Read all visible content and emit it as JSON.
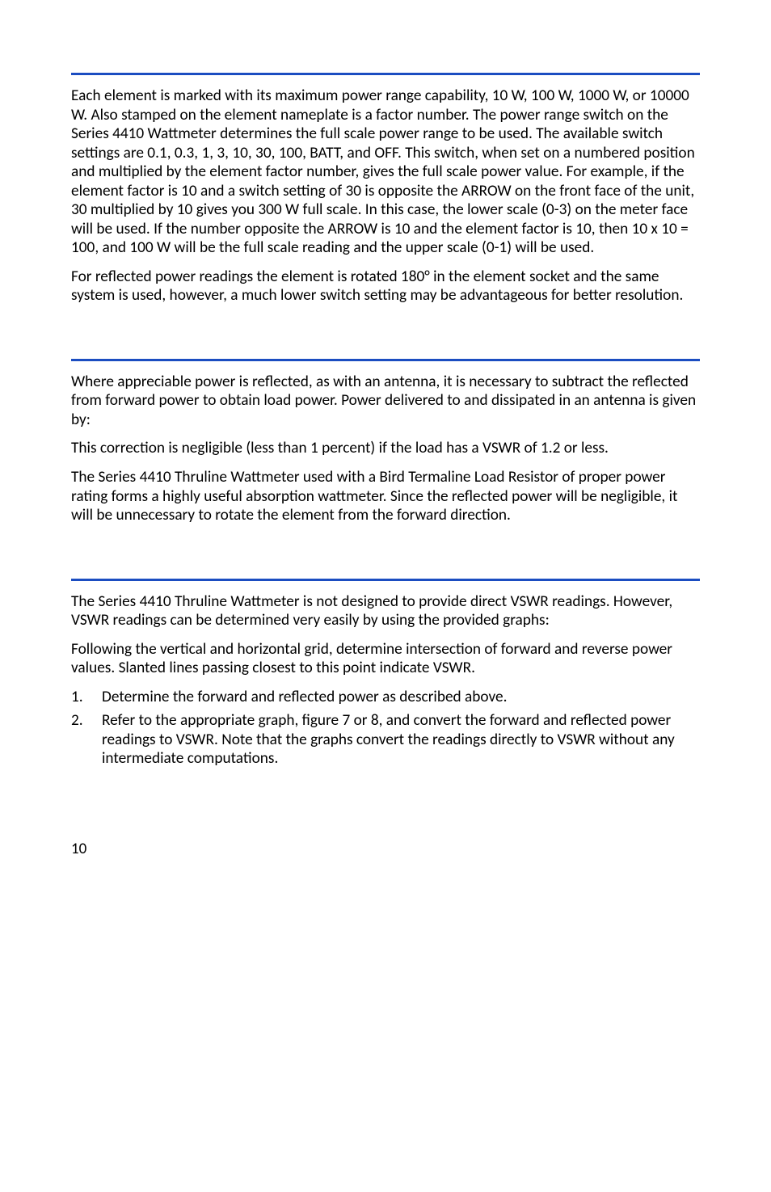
{
  "rule_color": "#1b4dc1",
  "section1": {
    "p1": "Each element is marked with its maximum power range capability, 10 W, 100 W, 1000 W, or 10000 W. Also stamped on the element nameplate is a factor number. The power range switch on the Series 4410 Wattmeter determines the full scale power range to be used. The available switch settings are 0.1, 0.3, 1, 3, 10, 30, 100, BATT, and OFF. This switch, when set on a numbered position and multiplied by the element factor number, gives the full scale power value. For example, if the element factor is 10 and a switch setting of 30 is opposite the ARROW on the front face of the unit, 30 multiplied by 10 gives you 300 W full scale. In this case, the lower scale (0-3) on the meter face will be used. If the number opposite the ARROW is 10 and the element factor is 10, then 10 x 10 = 100, and 100 W will be the full scale reading and the upper scale (0-1) will be used.",
    "p2": "For reflected power readings the element is rotated 180° in the element socket and the same system is used, however, a much lower switch setting may be advantageous for better resolution."
  },
  "section2": {
    "p1": "Where appreciable power is reflected, as with an antenna, it is necessary to subtract the reflected from forward power to obtain load power. Power delivered to and dissipated in an antenna is given by:",
    "p2": "This correction is negligible (less than 1 percent) if the load has a VSWR of 1.2 or less.",
    "p3": "The Series 4410 Thruline Wattmeter used with a Bird Termaline Load Resistor of proper power rating forms a highly useful absorption wattmeter. Since the reflected power will be negligible, it will be unnecessary to rotate the element from the forward direction."
  },
  "section3": {
    "p1": "The Series 4410 Thruline Wattmeter is not designed to provide direct VSWR readings. However, VSWR readings can be determined very easily by using the provided graphs:",
    "p2": "Following the vertical and horizontal grid, determine intersection of forward and reverse power values. Slanted lines passing closest to this point indicate VSWR.",
    "steps": [
      {
        "num": "1.",
        "text": "Determine the forward and reflected power as described above."
      },
      {
        "num": "2.",
        "text": "Refer to the appropriate graph, figure 7 or 8, and convert the forward and reflected power readings to VSWR. Note that the graphs convert the readings directly to VSWR without any intermediate computations."
      }
    ]
  },
  "page_number": "10"
}
